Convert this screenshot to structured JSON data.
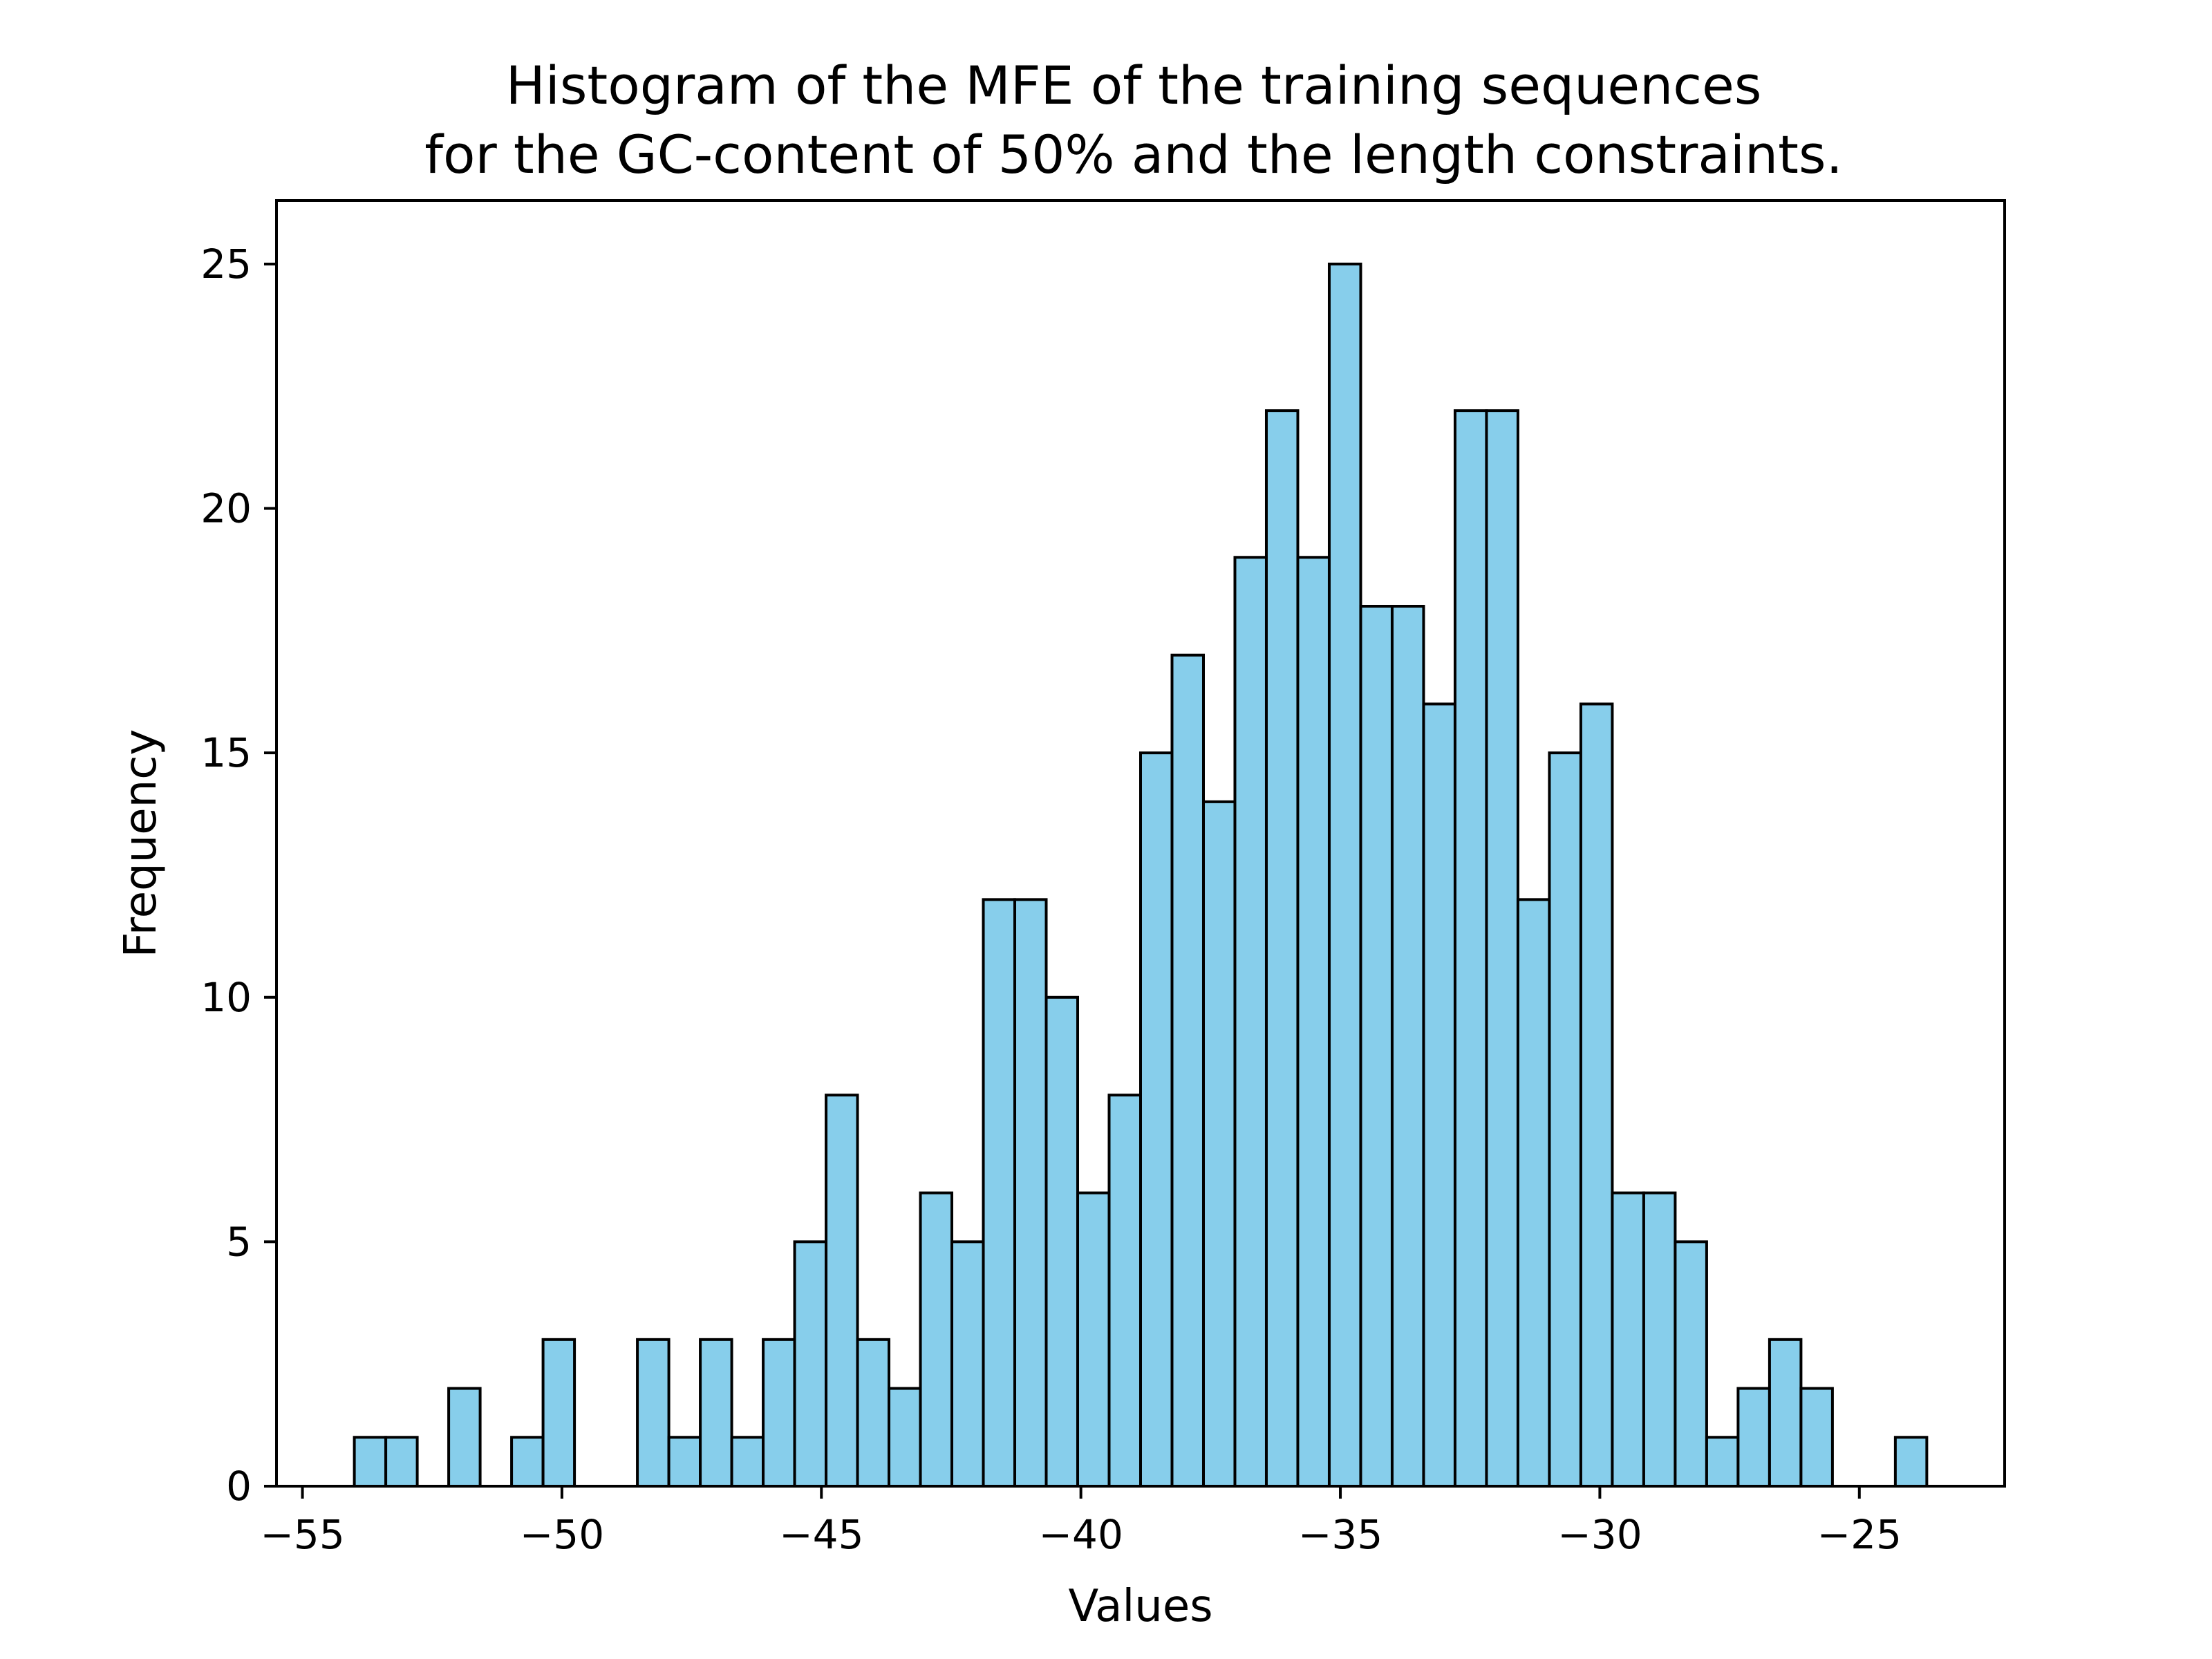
{
  "chart_data": {
    "type": "bar",
    "title_lines": [
      "Histogram of the MFE of the training sequences",
      "for the GC-content of 50% and the length constraints."
    ],
    "xlabel": "Values",
    "ylabel": "Frequency",
    "xlim": [
      -55.5,
      -22.2
    ],
    "ylim": [
      0,
      26.3
    ],
    "x_ticks": [
      -55,
      -50,
      -45,
      -40,
      -35,
      -30,
      -25
    ],
    "x_tick_labels": [
      "−55",
      "−50",
      "−45",
      "−40",
      "−35",
      "−30",
      "−25"
    ],
    "y_ticks": [
      0,
      5,
      10,
      15,
      20,
      25
    ],
    "y_tick_labels": [
      "0",
      "5",
      "10",
      "15",
      "20",
      "25"
    ],
    "bin_start": -54.0,
    "bin_width": 0.606,
    "values": [
      1,
      1,
      0,
      2,
      0,
      1,
      3,
      0,
      0,
      3,
      1,
      3,
      1,
      3,
      5,
      8,
      3,
      2,
      6,
      5,
      12,
      12,
      10,
      6,
      8,
      15,
      17,
      14,
      19,
      22,
      19,
      25,
      18,
      18,
      16,
      22,
      22,
      12,
      15,
      16,
      6,
      6,
      5,
      1,
      2,
      3,
      2,
      0,
      0,
      1
    ],
    "bar_color": "#87ceeb",
    "edge_color": "#000000",
    "grid": false,
    "legend": "none"
  }
}
